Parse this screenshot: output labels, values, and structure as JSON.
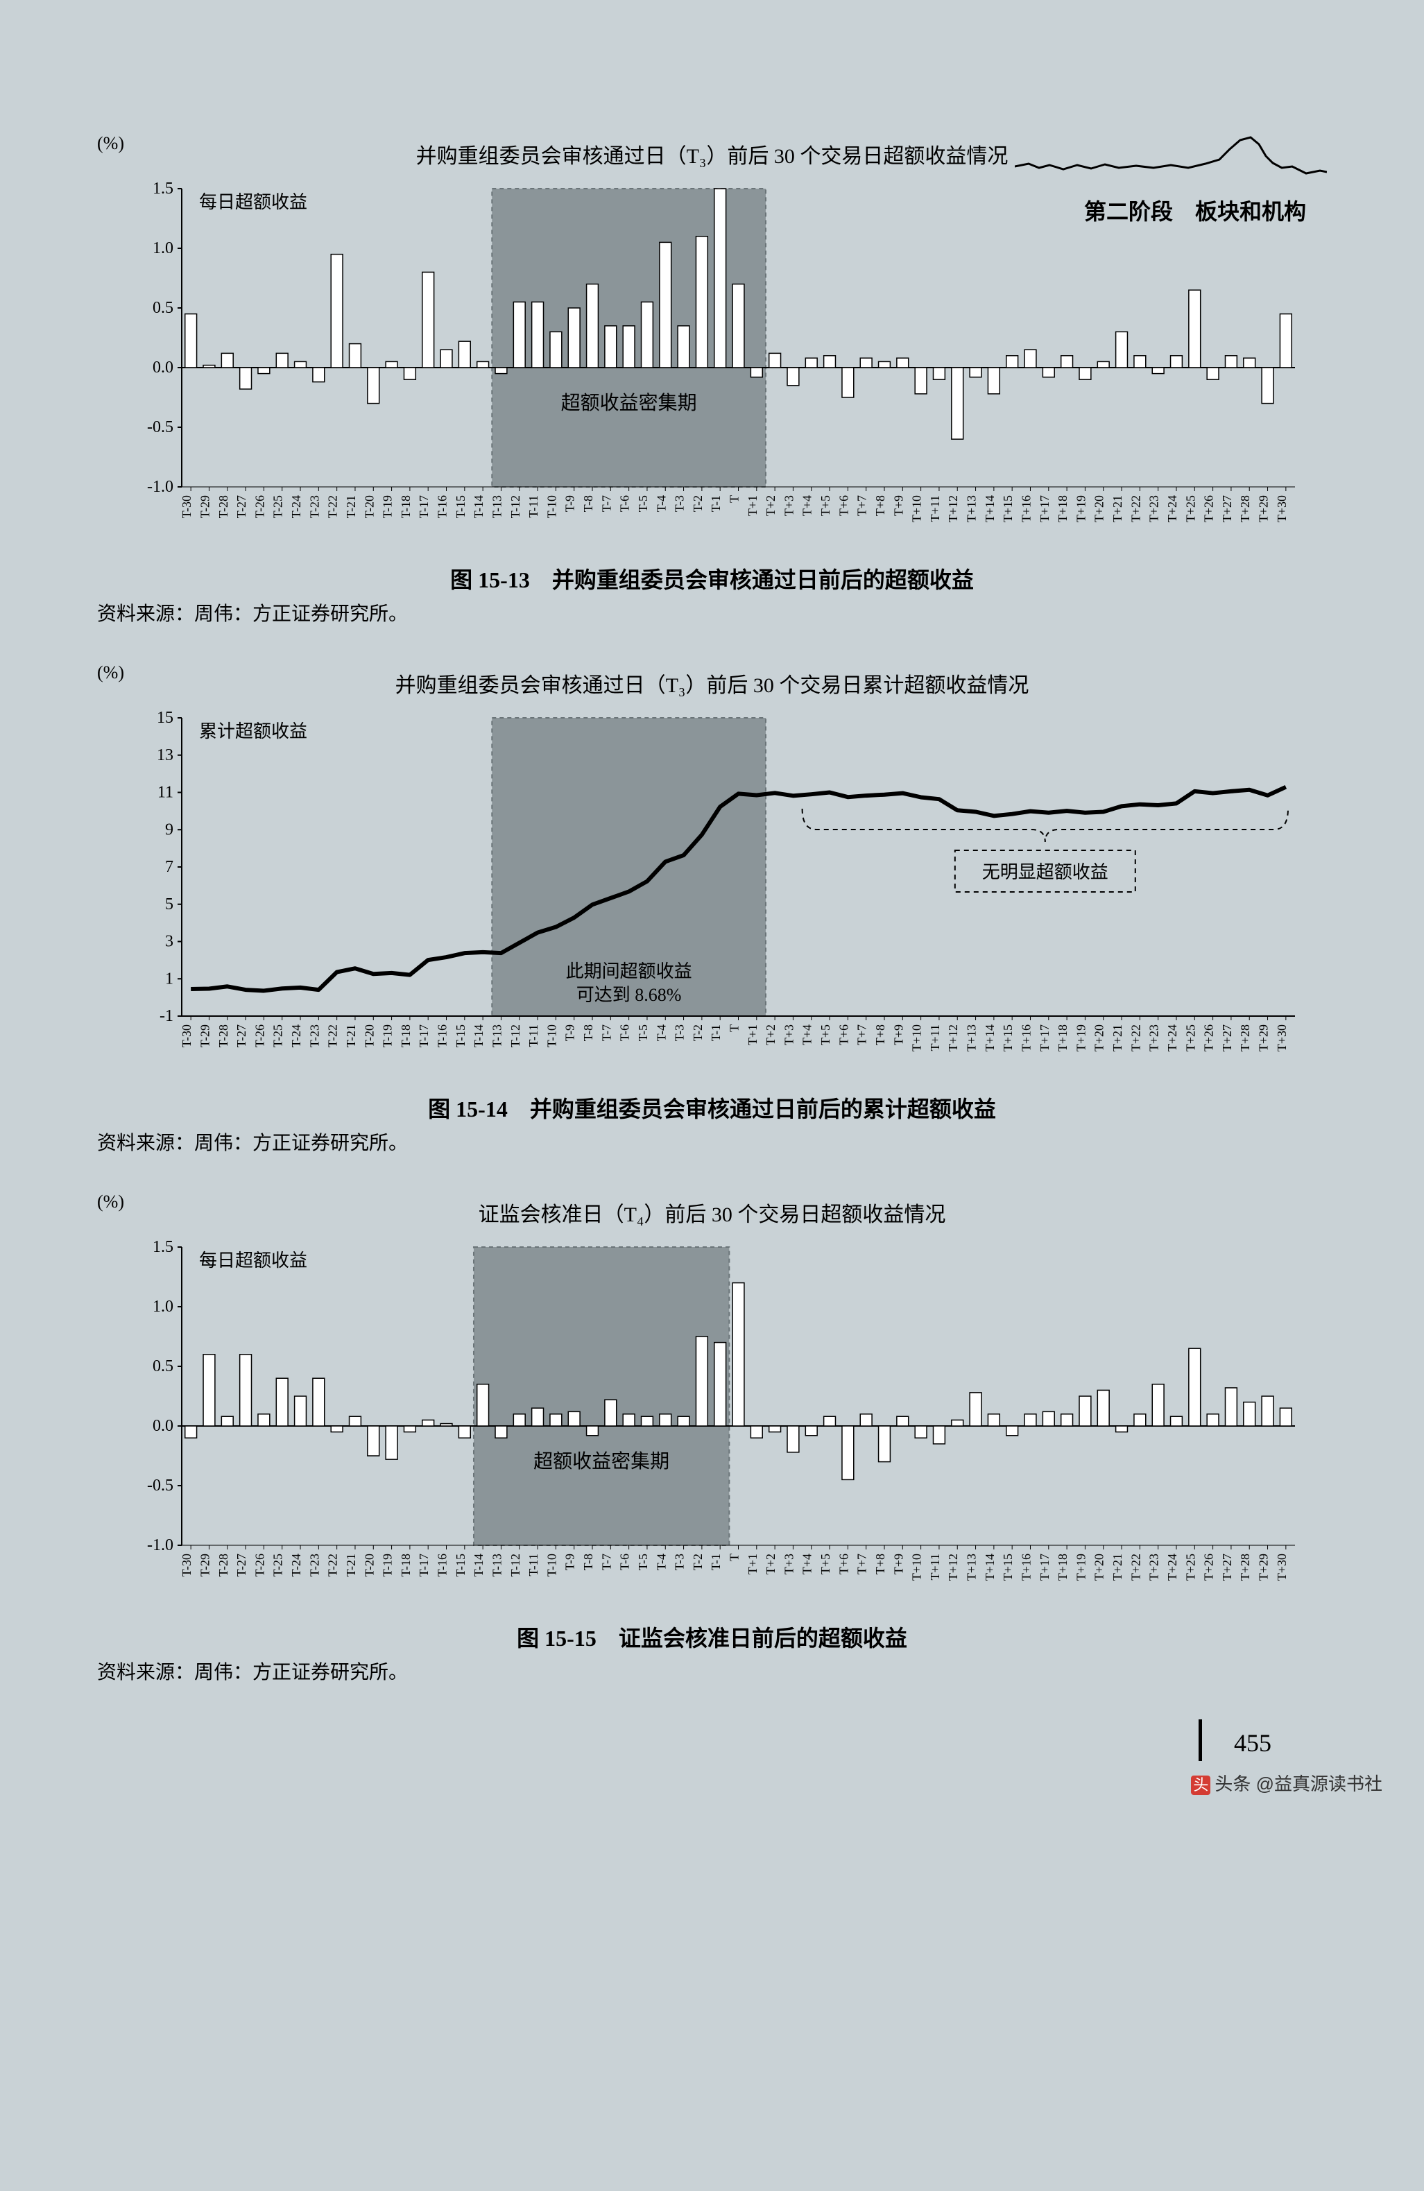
{
  "header": {
    "section_label": "第二阶段　板块和机构"
  },
  "page_number": "455",
  "footer_tag": "头条 @益真源读书社",
  "common": {
    "source_label": "资料来源：周伟：方正证券研究所。",
    "x_categories": [
      "T-30",
      "T-29",
      "T-28",
      "T-27",
      "T-26",
      "T-25",
      "T-24",
      "T-23",
      "T-22",
      "T-21",
      "T-20",
      "T-19",
      "T-18",
      "T-17",
      "T-16",
      "T-15",
      "T-14",
      "T-13",
      "T-12",
      "T-11",
      "T-10",
      "T-9",
      "T-8",
      "T-7",
      "T-6",
      "T-5",
      "T-4",
      "T-3",
      "T-2",
      "T-1",
      "T",
      "T+1",
      "T+2",
      "T+3",
      "T+4",
      "T+5",
      "T+6",
      "T+7",
      "T+8",
      "T+9",
      "T+10",
      "T+11",
      "T+12",
      "T+13",
      "T+14",
      "T+15",
      "T+16",
      "T+17",
      "T+18",
      "T+19",
      "T+20",
      "T+21",
      "T+22",
      "T+23",
      "T+24",
      "T+25",
      "T+26",
      "T+27",
      "T+28",
      "T+29",
      "T+30"
    ],
    "bar_color": "#ffffff",
    "bar_stroke": "#000000",
    "grid_color": "#000000",
    "highlight_fill": "#8b9599",
    "highlight_stroke": "#6a7478",
    "background_color": "#c9d2d6"
  },
  "chart1": {
    "type": "bar",
    "y_unit": "(%)",
    "title": "并购重组委员会审核通过日（T₃）前后 30 个交易日超额收益情况",
    "series_label": "每日超额收益",
    "annot_in_box": "超额收益密集期",
    "highlight_range": [
      17,
      32
    ],
    "ylim": [
      -1.0,
      1.5
    ],
    "yticks": [
      -1.0,
      -0.5,
      0.0,
      0.5,
      1.0,
      1.5
    ],
    "values": [
      0.45,
      0.02,
      0.12,
      -0.18,
      -0.05,
      0.12,
      0.05,
      -0.12,
      0.95,
      0.2,
      -0.3,
      0.05,
      -0.1,
      0.8,
      0.15,
      0.22,
      0.05,
      -0.05,
      0.55,
      0.55,
      0.3,
      0.5,
      0.7,
      0.35,
      0.35,
      0.55,
      1.05,
      0.35,
      1.1,
      1.5,
      0.7,
      -0.08,
      0.12,
      -0.15,
      0.08,
      0.1,
      -0.25,
      0.08,
      0.05,
      0.08,
      -0.22,
      -0.1,
      -0.6,
      -0.08,
      -0.22,
      0.1,
      0.15,
      -0.08,
      0.1,
      -0.1,
      0.05,
      0.3,
      0.1,
      -0.05,
      0.1,
      0.65,
      -0.1,
      0.1,
      0.08,
      -0.3,
      0.45
    ],
    "caption": "图 15-13　并购重组委员会审核通过日前后的超额收益"
  },
  "chart2": {
    "type": "line",
    "y_unit": "(%)",
    "title": "并购重组委员会审核通过日（T₃）前后 30 个交易日累计超额收益情况",
    "series_label": "累计超额收益",
    "annot_in_box_l1": "此期间超额收益",
    "annot_in_box_l2": "可达到 8.68%",
    "annot_right": "无明显超额收益",
    "highlight_range": [
      17,
      32
    ],
    "ylim": [
      -1,
      15
    ],
    "yticks": [
      -1,
      1,
      3,
      5,
      7,
      9,
      11,
      13,
      15
    ],
    "values": [
      0.45,
      0.47,
      0.59,
      0.41,
      0.36,
      0.48,
      0.53,
      0.41,
      1.36,
      1.56,
      1.26,
      1.31,
      1.21,
      2.01,
      2.16,
      2.38,
      2.43,
      2.38,
      2.93,
      3.48,
      3.78,
      4.28,
      4.98,
      5.33,
      5.68,
      6.23,
      7.28,
      7.63,
      8.73,
      10.23,
      10.93,
      10.85,
      10.97,
      10.82,
      10.9,
      11.0,
      10.75,
      10.83,
      10.88,
      10.96,
      10.74,
      10.64,
      10.04,
      9.96,
      9.74,
      9.84,
      9.99,
      9.91,
      10.01,
      9.91,
      9.96,
      10.26,
      10.36,
      10.31,
      10.41,
      11.06,
      10.96,
      11.06,
      11.14,
      10.84,
      11.29
    ],
    "line_color": "#000000",
    "line_width": 6,
    "caption": "图 15-14　并购重组委员会审核通过日前后的累计超额收益"
  },
  "chart3": {
    "type": "bar",
    "y_unit": "(%)",
    "title": "证监会核准日（T₄）前后 30 个交易日超额收益情况",
    "series_label": "每日超额收益",
    "annot_in_box": "超额收益密集期",
    "highlight_range": [
      16,
      30
    ],
    "ylim": [
      -1.0,
      1.5
    ],
    "yticks": [
      -1.0,
      -0.5,
      0.0,
      0.5,
      1.0,
      1.5
    ],
    "values": [
      -0.1,
      0.6,
      0.08,
      0.6,
      0.1,
      0.4,
      0.25,
      0.4,
      -0.05,
      0.08,
      -0.25,
      -0.28,
      -0.05,
      0.05,
      0.02,
      -0.1,
      0.35,
      -0.1,
      0.1,
      0.15,
      0.1,
      0.12,
      -0.08,
      0.22,
      0.1,
      0.08,
      0.1,
      0.08,
      0.75,
      0.7,
      1.2,
      -0.1,
      -0.05,
      -0.22,
      -0.08,
      0.08,
      -0.45,
      0.1,
      -0.3,
      0.08,
      -0.1,
      -0.15,
      0.05,
      0.28,
      0.1,
      -0.08,
      0.1,
      0.12,
      0.1,
      0.25,
      0.3,
      -0.05,
      0.1,
      0.35,
      0.08,
      0.65,
      0.1,
      0.32,
      0.2,
      0.25,
      0.15
    ],
    "caption": "图 15-15　证监会核准日前后的超额收益"
  }
}
